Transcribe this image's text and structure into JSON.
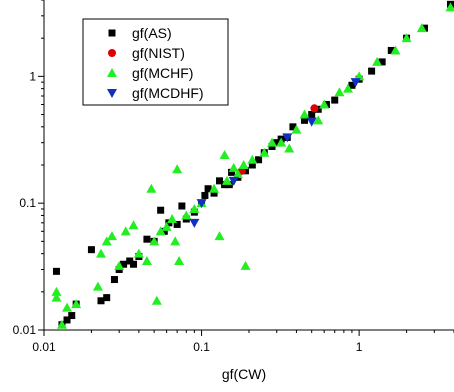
{
  "chart_data": {
    "type": "scatter",
    "title": "",
    "xlabel": "gf(CW)",
    "ylabel": "",
    "xscale": "log",
    "yscale": "log",
    "xlim": [
      0.01,
      4
    ],
    "ylim": [
      0.01,
      4
    ],
    "x_ticks": [
      0.01,
      0.1,
      1
    ],
    "y_ticks": [
      0.01,
      0.1,
      1
    ],
    "x_tick_labels": [
      "0.01",
      "0.1",
      "1"
    ],
    "y_tick_labels": [
      "0.01",
      "0.1",
      "1"
    ],
    "grid": false,
    "legend_position": "top-left",
    "series": [
      {
        "name": "gf(AS)",
        "marker": "square",
        "color": "#000000",
        "points": [
          [
            0.012,
            0.029
          ],
          [
            0.013,
            0.011
          ],
          [
            0.014,
            0.012
          ],
          [
            0.015,
            0.013
          ],
          [
            0.016,
            0.016
          ],
          [
            0.02,
            0.043
          ],
          [
            0.023,
            0.017
          ],
          [
            0.025,
            0.018
          ],
          [
            0.028,
            0.025
          ],
          [
            0.03,
            0.03
          ],
          [
            0.032,
            0.033
          ],
          [
            0.035,
            0.035
          ],
          [
            0.037,
            0.033
          ],
          [
            0.04,
            0.038
          ],
          [
            0.045,
            0.052
          ],
          [
            0.05,
            0.05
          ],
          [
            0.055,
            0.088
          ],
          [
            0.058,
            0.06
          ],
          [
            0.062,
            0.07
          ],
          [
            0.07,
            0.068
          ],
          [
            0.075,
            0.095
          ],
          [
            0.08,
            0.075
          ],
          [
            0.09,
            0.085
          ],
          [
            0.1,
            0.1
          ],
          [
            0.105,
            0.115
          ],
          [
            0.11,
            0.13
          ],
          [
            0.12,
            0.12
          ],
          [
            0.13,
            0.15
          ],
          [
            0.14,
            0.14
          ],
          [
            0.15,
            0.14
          ],
          [
            0.155,
            0.175
          ],
          [
            0.17,
            0.16
          ],
          [
            0.19,
            0.18
          ],
          [
            0.21,
            0.2
          ],
          [
            0.23,
            0.22
          ],
          [
            0.25,
            0.25
          ],
          [
            0.28,
            0.28
          ],
          [
            0.3,
            0.3
          ],
          [
            0.32,
            0.32
          ],
          [
            0.35,
            0.33
          ],
          [
            0.38,
            0.4
          ],
          [
            0.45,
            0.45
          ],
          [
            0.5,
            0.5
          ],
          [
            0.55,
            0.55
          ],
          [
            0.62,
            0.6
          ],
          [
            0.7,
            0.65
          ],
          [
            0.9,
            0.85
          ],
          [
            1.0,
            0.95
          ],
          [
            1.2,
            1.1
          ],
          [
            1.4,
            1.3
          ],
          [
            1.6,
            1.6
          ],
          [
            2.0,
            2.0
          ],
          [
            2.6,
            2.4
          ],
          [
            3.8,
            3.7
          ]
        ]
      },
      {
        "name": "gf(NIST)",
        "marker": "circle",
        "color": "#e00000",
        "points": [
          [
            0.18,
            0.18
          ],
          [
            0.52,
            0.56
          ]
        ]
      },
      {
        "name": "gf(MCHF)",
        "marker": "triangle-up",
        "color": "#22ee22",
        "points": [
          [
            0.012,
            0.018
          ],
          [
            0.012,
            0.02
          ],
          [
            0.013,
            0.011
          ],
          [
            0.014,
            0.015
          ],
          [
            0.016,
            0.016
          ],
          [
            0.022,
            0.022
          ],
          [
            0.023,
            0.04
          ],
          [
            0.025,
            0.05
          ],
          [
            0.027,
            0.055
          ],
          [
            0.03,
            0.032
          ],
          [
            0.033,
            0.06
          ],
          [
            0.037,
            0.067
          ],
          [
            0.04,
            0.04
          ],
          [
            0.045,
            0.035
          ],
          [
            0.048,
            0.13
          ],
          [
            0.05,
            0.05
          ],
          [
            0.052,
            0.017
          ],
          [
            0.055,
            0.06
          ],
          [
            0.06,
            0.065
          ],
          [
            0.065,
            0.075
          ],
          [
            0.068,
            0.05
          ],
          [
            0.07,
            0.185
          ],
          [
            0.072,
            0.035
          ],
          [
            0.08,
            0.08
          ],
          [
            0.09,
            0.09
          ],
          [
            0.1,
            0.1
          ],
          [
            0.12,
            0.13
          ],
          [
            0.13,
            0.055
          ],
          [
            0.14,
            0.24
          ],
          [
            0.145,
            0.15
          ],
          [
            0.16,
            0.19
          ],
          [
            0.17,
            0.17
          ],
          [
            0.185,
            0.2
          ],
          [
            0.19,
            0.032
          ],
          [
            0.21,
            0.22
          ],
          [
            0.25,
            0.25
          ],
          [
            0.28,
            0.3
          ],
          [
            0.32,
            0.3
          ],
          [
            0.36,
            0.27
          ],
          [
            0.4,
            0.38
          ],
          [
            0.45,
            0.5
          ],
          [
            0.55,
            0.45
          ],
          [
            0.6,
            0.6
          ],
          [
            0.75,
            0.75
          ],
          [
            0.85,
            0.8
          ],
          [
            1.0,
            1.0
          ],
          [
            1.3,
            1.3
          ],
          [
            1.7,
            1.6
          ],
          [
            2.0,
            2.0
          ],
          [
            2.5,
            2.4
          ],
          [
            3.8,
            3.5
          ]
        ]
      },
      {
        "name": "gf(MCDHF)",
        "marker": "triangle-down",
        "color": "#1030c0",
        "points": [
          [
            0.09,
            0.07
          ],
          [
            0.1,
            0.1
          ],
          [
            0.16,
            0.15
          ],
          [
            0.35,
            0.33
          ],
          [
            0.5,
            0.44
          ],
          [
            0.95,
            0.9
          ]
        ]
      }
    ]
  }
}
